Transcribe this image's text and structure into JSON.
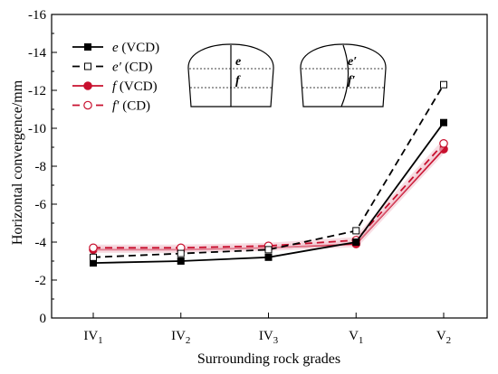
{
  "chart_data": {
    "type": "line",
    "xlabel": "Surrounding rock grades",
    "ylabel": "Horizontal convergence/mm",
    "categories": [
      {
        "main": "IV",
        "sub": "1"
      },
      {
        "main": "IV",
        "sub": "2"
      },
      {
        "main": "IV",
        "sub": "3"
      },
      {
        "main": "V",
        "sub": "1"
      },
      {
        "main": "V",
        "sub": "2"
      }
    ],
    "y_axis": {
      "reversed": true,
      "ylim": [
        0,
        -16
      ],
      "ticks": [
        0,
        -2,
        -4,
        -6,
        -8,
        -10,
        -12,
        -14,
        -16
      ],
      "tick_labels": [
        "0",
        "-2",
        "-4",
        "-6",
        "-8",
        "-10",
        "-12",
        "-14",
        "-16"
      ]
    },
    "grid": false,
    "legend_position": "top-left",
    "series": [
      {
        "name_var": "e",
        "name_suffix": " (VCD)",
        "color": "#000000",
        "dash": "solid",
        "marker": "square-filled",
        "values": [
          -2.9,
          -3.0,
          -3.2,
          -4.0,
          -10.3
        ]
      },
      {
        "name_var": "e′",
        "name_suffix": " (CD)",
        "color": "#000000",
        "dash": "dashed",
        "marker": "square-open",
        "values": [
          -3.2,
          -3.4,
          -3.6,
          -4.6,
          -12.3
        ]
      },
      {
        "name_var": "f",
        "name_suffix": " (VCD)",
        "color": "#c8102e",
        "dash": "solid",
        "marker": "circle-filled",
        "values": [
          -3.6,
          -3.6,
          -3.7,
          -3.9,
          -8.9
        ]
      },
      {
        "name_var": "f′",
        "name_suffix": " (CD)",
        "color": "#c8102e",
        "dash": "dashed",
        "marker": "circle-open",
        "values": [
          -3.7,
          -3.7,
          -3.8,
          -4.1,
          -9.2
        ]
      }
    ],
    "insets": [
      {
        "upper_label": "e",
        "lower_label": "f",
        "divider": "straight"
      },
      {
        "upper_label": "e′",
        "lower_label": "f′",
        "divider": "curved"
      }
    ]
  }
}
